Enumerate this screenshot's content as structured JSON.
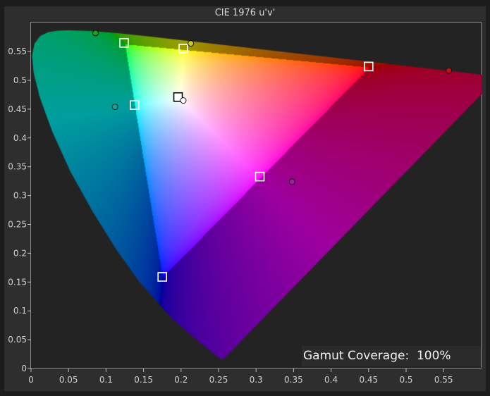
{
  "chart_data": {
    "type": "scatter",
    "title": "CIE 1976 u'v'",
    "xlabel": "",
    "ylabel": "",
    "xlim": [
      0,
      0.6
    ],
    "ylim": [
      0,
      0.6
    ],
    "grid": false,
    "x_ticks": [
      "0",
      "0.05",
      "0.1",
      "0.15",
      "0.2",
      "0.25",
      "0.3",
      "0.35",
      "0.4",
      "0.45",
      "0.5",
      "0.55"
    ],
    "y_ticks": [
      "0",
      "0.05",
      "0.1",
      "0.15",
      "0.2",
      "0.25",
      "0.3",
      "0.35",
      "0.4",
      "0.45",
      "0.5",
      "0.55"
    ],
    "targets": [
      {
        "point": "green",
        "u": 0.124,
        "v": 0.565
      },
      {
        "point": "yellow",
        "u": 0.203,
        "v": 0.555
      },
      {
        "point": "red",
        "u": 0.45,
        "v": 0.524
      },
      {
        "point": "cyan",
        "u": 0.138,
        "v": 0.457
      },
      {
        "point": "white",
        "u": 0.196,
        "v": 0.471
      },
      {
        "point": "magenta",
        "u": 0.305,
        "v": 0.333
      },
      {
        "point": "blue",
        "u": 0.175,
        "v": 0.159
      }
    ],
    "measured": [
      {
        "point": "green",
        "u": 0.086,
        "v": 0.582,
        "color": "#1fa01f"
      },
      {
        "point": "yellow",
        "u": 0.213,
        "v": 0.564,
        "color": "#c8c820"
      },
      {
        "point": "red",
        "u": 0.557,
        "v": 0.517,
        "color": "#c01010"
      },
      {
        "point": "cyan",
        "u": 0.112,
        "v": 0.454,
        "color": "#20a090"
      },
      {
        "point": "white",
        "u": 0.203,
        "v": 0.465,
        "color": "#ffffff"
      },
      {
        "point": "magenta",
        "u": 0.348,
        "v": 0.324,
        "color": "#a020a0"
      }
    ],
    "reference_gamut": {
      "red": [
        0.451,
        0.523
      ],
      "green": [
        0.125,
        0.563
      ],
      "blue": [
        0.175,
        0.158
      ]
    }
  },
  "gamut_coverage": {
    "label": "Gamut Coverage:",
    "value": "100%"
  }
}
